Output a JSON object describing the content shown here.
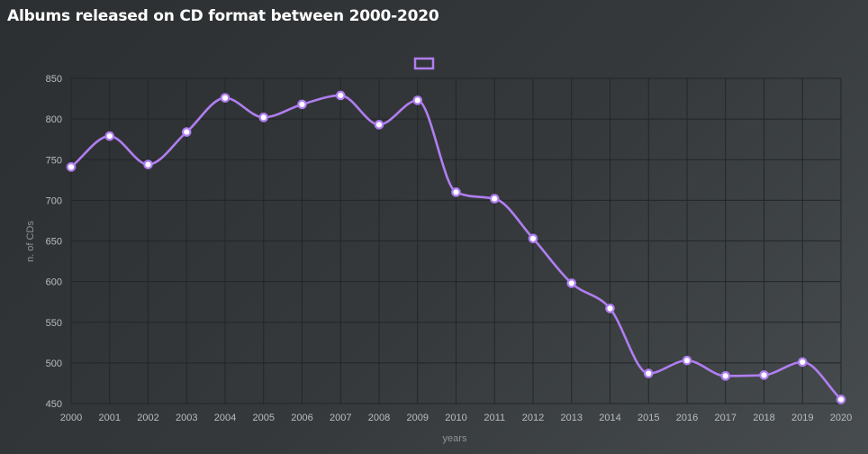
{
  "chart_data": {
    "type": "line",
    "title": "Albums released on CD format between 2000-2020",
    "xlabel": "years",
    "ylabel": "n. of CDs",
    "categories": [
      "2000",
      "2001",
      "2002",
      "2003",
      "2004",
      "2005",
      "2006",
      "2007",
      "2008",
      "2009",
      "2010",
      "2011",
      "2012",
      "2013",
      "2014",
      "2015",
      "2016",
      "2017",
      "2018",
      "2019",
      "2020"
    ],
    "series": [
      {
        "values": [
          741,
          779,
          744,
          784,
          826,
          802,
          818,
          829,
          793,
          823,
          710,
          702,
          653,
          598,
          567,
          487,
          503,
          484,
          485,
          501,
          455
        ],
        "color": "#b07ef0"
      }
    ],
    "yticks": [
      450,
      500,
      550,
      600,
      650,
      700,
      750,
      800,
      850
    ],
    "ylim": [
      450,
      850
    ],
    "grid": true,
    "legend": "top-center",
    "colors": {
      "line": "#b07ef0",
      "grid": "#232628",
      "text": "#b9bdbf"
    }
  }
}
